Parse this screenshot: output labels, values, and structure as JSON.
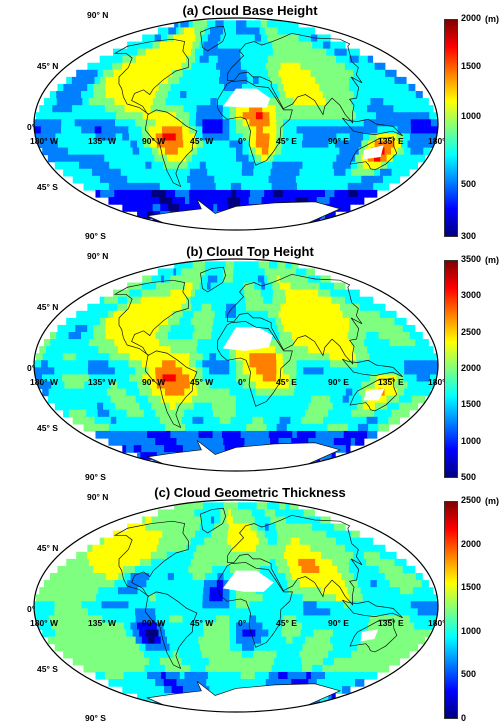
{
  "panels": [
    {
      "title": "(a) Cloud Base Height",
      "unit": "(m)",
      "ticks": [
        "2000",
        "1500",
        "1000",
        "500",
        "300"
      ],
      "tick_fracs": [
        0.0,
        0.22,
        0.45,
        0.76,
        1.0
      ]
    },
    {
      "title": "(b) Cloud Top Height",
      "unit": "(m)",
      "ticks": [
        "3500",
        "3000",
        "2500",
        "2000",
        "1500",
        "1000",
        "500"
      ],
      "tick_fracs": [
        0.0,
        0.167,
        0.333,
        0.5,
        0.667,
        0.833,
        1.0
      ]
    },
    {
      "title": "(c) Cloud Geometric Thickness",
      "unit": "(m)",
      "ticks": [
        "2500",
        "2000",
        "1500",
        "1000",
        "500",
        "0"
      ],
      "tick_fracs": [
        0.0,
        0.2,
        0.4,
        0.6,
        0.8,
        1.0
      ]
    }
  ],
  "map_labels": {
    "lat_90n": "90° N",
    "lat_45n": "45° N",
    "lat_0": "0°",
    "lat_45s": "45° S",
    "lat_90s": "90° S",
    "lon_180w": "180° W",
    "lon_135w": "135° W",
    "lon_90w": "90° W",
    "lon_45w": "45° W",
    "lon_0": "0°",
    "lon_45e": "45° E",
    "lon_90e": "90° E",
    "lon_135e": "135° E",
    "lon_180": "180°"
  },
  "colormap": [
    "#00007f",
    "#0000ff",
    "#007fff",
    "#00ffff",
    "#7fff7f",
    "#ffff00",
    "#ff7f00",
    "#ff0000",
    "#7f0000"
  ]
}
